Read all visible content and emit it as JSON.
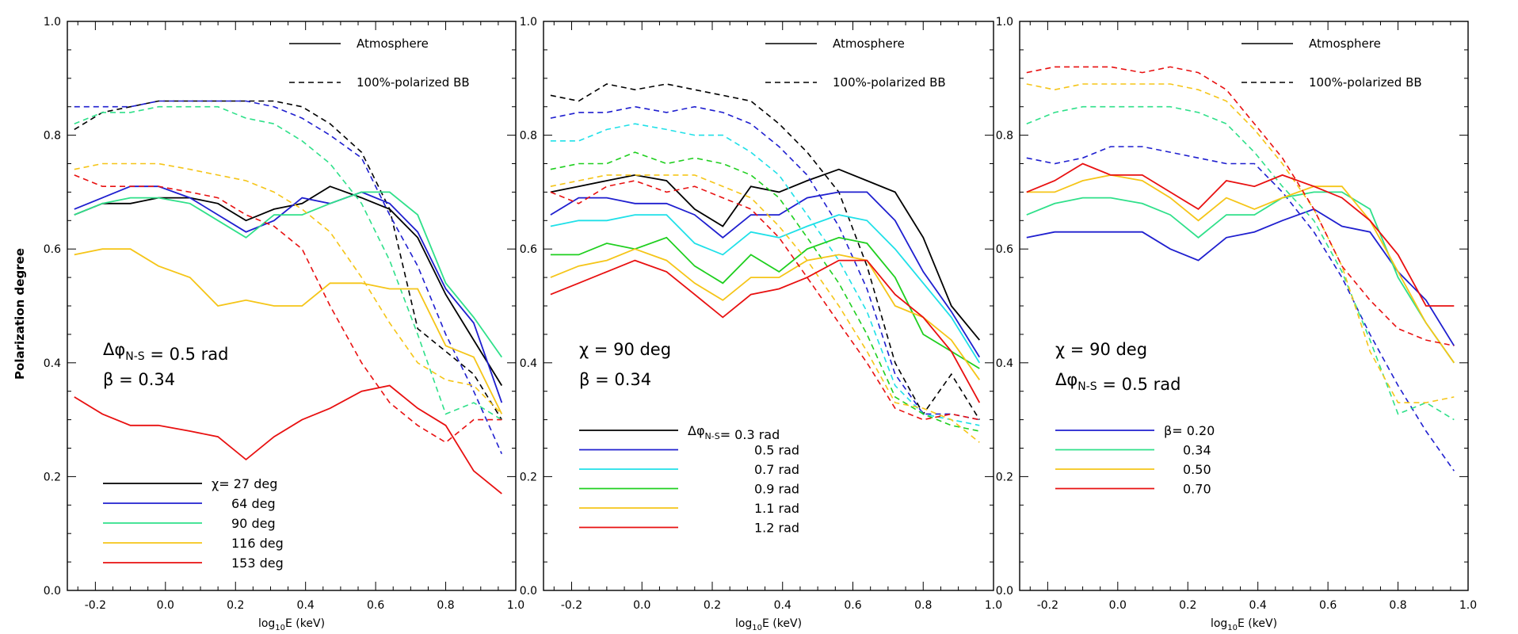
{
  "figure": {
    "ylabel": "Polarization degree",
    "yticks": [
      "0.0",
      "0.2",
      "0.4",
      "0.6",
      "0.8",
      "1.0"
    ],
    "xticks": [
      "-0.2",
      "0.0",
      "0.2",
      "0.4",
      "0.6",
      "0.8",
      "1.0"
    ]
  },
  "colors": {
    "black": "#000000",
    "blue": "#1f1fcf",
    "cyan": "#1fe0e8",
    "green": "#1fcf1f",
    "spring": "#2fe08a",
    "yellow": "#f5c518",
    "red": "#e81010"
  },
  "chart_data": [
    {
      "type": "line",
      "panel": "left",
      "xlabel": "log₁₀E (keV)",
      "ylabel": "Polarization degree",
      "xlim": [
        -0.28,
        1.0
      ],
      "ylim": [
        0.0,
        1.0
      ],
      "style_legend": {
        "solid": "Atmosphere",
        "dashed": "100%-polarized BB"
      },
      "annotation_lines": [
        "Δφ_{N-S} =  0.5 rad",
        "β =  0.34"
      ],
      "legend_title": "χ=",
      "x": [
        -0.26,
        -0.18,
        -0.1,
        -0.02,
        0.07,
        0.15,
        0.23,
        0.31,
        0.39,
        0.47,
        0.56,
        0.64,
        0.72,
        0.8,
        0.88,
        0.96
      ],
      "series": [
        {
          "name": "27 deg",
          "color": "black",
          "solid": [
            0.66,
            0.68,
            0.68,
            0.69,
            0.69,
            0.68,
            0.65,
            0.67,
            0.68,
            0.71,
            0.69,
            0.67,
            0.62,
            0.52,
            0.44,
            0.36
          ],
          "dashed": [
            0.81,
            0.84,
            0.85,
            0.86,
            0.86,
            0.86,
            0.86,
            0.86,
            0.85,
            0.82,
            0.77,
            0.67,
            0.46,
            0.42,
            0.38,
            0.3
          ]
        },
        {
          "name": "64 deg",
          "color": "blue",
          "solid": [
            0.67,
            0.69,
            0.71,
            0.71,
            0.69,
            0.66,
            0.63,
            0.65,
            0.69,
            0.68,
            0.7,
            0.68,
            0.63,
            0.53,
            0.47,
            0.33
          ],
          "dashed": [
            0.85,
            0.85,
            0.85,
            0.86,
            0.86,
            0.86,
            0.86,
            0.85,
            0.83,
            0.8,
            0.76,
            0.66,
            0.57,
            0.45,
            0.35,
            0.24
          ]
        },
        {
          "name": "90 deg",
          "color": "spring",
          "solid": [
            0.66,
            0.68,
            0.69,
            0.69,
            0.68,
            0.65,
            0.62,
            0.66,
            0.66,
            0.68,
            0.7,
            0.7,
            0.66,
            0.54,
            0.48,
            0.41
          ],
          "dashed": [
            0.82,
            0.84,
            0.84,
            0.85,
            0.85,
            0.85,
            0.83,
            0.82,
            0.79,
            0.75,
            0.68,
            0.58,
            0.45,
            0.31,
            0.33,
            0.3
          ]
        },
        {
          "name": "116 deg",
          "color": "yellow",
          "solid": [
            0.59,
            0.6,
            0.6,
            0.57,
            0.55,
            0.5,
            0.51,
            0.5,
            0.5,
            0.54,
            0.54,
            0.53,
            0.53,
            0.43,
            0.41,
            0.31
          ],
          "dashed": [
            0.74,
            0.75,
            0.75,
            0.75,
            0.74,
            0.73,
            0.72,
            0.7,
            0.67,
            0.63,
            0.55,
            0.47,
            0.4,
            0.37,
            0.36,
            0.31
          ]
        },
        {
          "name": "153 deg",
          "color": "red",
          "solid": [
            0.34,
            0.31,
            0.29,
            0.29,
            0.28,
            0.27,
            0.23,
            0.27,
            0.3,
            0.32,
            0.35,
            0.36,
            0.32,
            0.29,
            0.21,
            0.17
          ],
          "dashed": [
            0.73,
            0.71,
            0.71,
            0.71,
            0.7,
            0.69,
            0.66,
            0.64,
            0.6,
            0.5,
            0.4,
            0.33,
            0.29,
            0.26,
            0.3,
            0.3
          ]
        }
      ]
    },
    {
      "type": "line",
      "panel": "middle",
      "xlabel": "log₁₀E (keV)",
      "xlim": [
        -0.28,
        1.0
      ],
      "ylim": [
        0.0,
        1.0
      ],
      "style_legend": {
        "solid": "Atmosphere",
        "dashed": "100%-polarized BB"
      },
      "annotation_lines": [
        "χ =    90 deg",
        "β =  0.34"
      ],
      "legend_title": "Δφ_{N-S}=",
      "x": [
        -0.26,
        -0.18,
        -0.1,
        -0.02,
        0.07,
        0.15,
        0.23,
        0.31,
        0.39,
        0.47,
        0.56,
        0.64,
        0.72,
        0.8,
        0.88,
        0.96
      ],
      "series": [
        {
          "name": "0.3 rad",
          "color": "black",
          "solid": [
            0.7,
            0.71,
            0.72,
            0.73,
            0.72,
            0.67,
            0.64,
            0.71,
            0.7,
            0.72,
            0.74,
            0.72,
            0.7,
            0.62,
            0.5,
            0.44
          ],
          "dashed": [
            0.87,
            0.86,
            0.89,
            0.88,
            0.89,
            0.88,
            0.87,
            0.86,
            0.82,
            0.77,
            0.7,
            0.57,
            0.4,
            0.31,
            0.38,
            0.3
          ]
        },
        {
          "name": "0.5 rad",
          "color": "blue",
          "solid": [
            0.66,
            0.69,
            0.69,
            0.68,
            0.68,
            0.66,
            0.62,
            0.66,
            0.66,
            0.69,
            0.7,
            0.7,
            0.65,
            0.56,
            0.49,
            0.41
          ],
          "dashed": [
            0.83,
            0.84,
            0.84,
            0.85,
            0.84,
            0.85,
            0.84,
            0.82,
            0.78,
            0.73,
            0.64,
            0.53,
            0.38,
            0.31,
            0.31,
            0.3
          ]
        },
        {
          "name": "0.7 rad",
          "color": "cyan",
          "solid": [
            0.64,
            0.65,
            0.65,
            0.66,
            0.66,
            0.61,
            0.59,
            0.63,
            0.62,
            0.64,
            0.66,
            0.65,
            0.6,
            0.54,
            0.48,
            0.4
          ],
          "dashed": [
            0.79,
            0.79,
            0.81,
            0.82,
            0.81,
            0.8,
            0.8,
            0.77,
            0.73,
            0.66,
            0.58,
            0.49,
            0.36,
            0.31,
            0.3,
            0.29
          ]
        },
        {
          "name": "0.9 rad",
          "color": "green",
          "solid": [
            0.59,
            0.59,
            0.61,
            0.6,
            0.62,
            0.57,
            0.54,
            0.59,
            0.56,
            0.6,
            0.62,
            0.61,
            0.55,
            0.45,
            0.42,
            0.39
          ],
          "dashed": [
            0.74,
            0.75,
            0.75,
            0.77,
            0.75,
            0.76,
            0.75,
            0.73,
            0.69,
            0.62,
            0.54,
            0.45,
            0.34,
            0.31,
            0.29,
            0.28
          ]
        },
        {
          "name": "1.1 rad",
          "color": "yellow",
          "solid": [
            0.55,
            0.57,
            0.58,
            0.6,
            0.58,
            0.54,
            0.51,
            0.55,
            0.55,
            0.58,
            0.59,
            0.58,
            0.5,
            0.48,
            0.44,
            0.37
          ],
          "dashed": [
            0.71,
            0.72,
            0.73,
            0.73,
            0.73,
            0.73,
            0.71,
            0.69,
            0.64,
            0.58,
            0.5,
            0.42,
            0.33,
            0.32,
            0.3,
            0.26
          ]
        },
        {
          "name": "1.2 rad",
          "color": "red",
          "solid": [
            0.52,
            0.54,
            0.56,
            0.58,
            0.56,
            0.52,
            0.48,
            0.52,
            0.53,
            0.55,
            0.58,
            0.58,
            0.52,
            0.48,
            0.42,
            0.33
          ],
          "dashed": [
            0.7,
            0.68,
            0.71,
            0.72,
            0.7,
            0.71,
            0.69,
            0.67,
            0.62,
            0.55,
            0.47,
            0.4,
            0.32,
            0.3,
            0.31,
            0.3
          ]
        }
      ]
    },
    {
      "type": "line",
      "panel": "right",
      "xlabel": "log₁₀E (keV)",
      "xlim": [
        -0.28,
        1.0
      ],
      "ylim": [
        0.0,
        1.0
      ],
      "style_legend": {
        "solid": "Atmosphere",
        "dashed": "100%-polarized BB"
      },
      "annotation_lines": [
        "χ =    90 deg",
        "Δφ_{N-S} =  0.5 rad"
      ],
      "legend_title": "β=",
      "x": [
        -0.26,
        -0.18,
        -0.1,
        -0.02,
        0.07,
        0.15,
        0.23,
        0.31,
        0.39,
        0.47,
        0.56,
        0.64,
        0.72,
        0.8,
        0.88,
        0.96
      ],
      "series": [
        {
          "name": "0.20",
          "color": "blue",
          "solid": [
            0.62,
            0.63,
            0.63,
            0.63,
            0.63,
            0.6,
            0.58,
            0.62,
            0.63,
            0.65,
            0.67,
            0.64,
            0.63,
            0.56,
            0.51,
            0.43
          ],
          "dashed": [
            0.76,
            0.75,
            0.76,
            0.78,
            0.78,
            0.77,
            0.76,
            0.75,
            0.75,
            0.7,
            0.63,
            0.55,
            0.45,
            0.36,
            0.28,
            0.21
          ]
        },
        {
          "name": "0.34",
          "color": "spring",
          "solid": [
            0.66,
            0.68,
            0.69,
            0.69,
            0.68,
            0.66,
            0.62,
            0.66,
            0.66,
            0.69,
            0.7,
            0.7,
            0.67,
            0.55,
            0.47,
            0.4
          ],
          "dashed": [
            0.82,
            0.84,
            0.85,
            0.85,
            0.85,
            0.85,
            0.84,
            0.82,
            0.77,
            0.71,
            0.65,
            0.56,
            0.44,
            0.31,
            0.33,
            0.3
          ]
        },
        {
          "name": "0.50",
          "color": "yellow",
          "solid": [
            0.7,
            0.7,
            0.72,
            0.73,
            0.72,
            0.69,
            0.65,
            0.69,
            0.67,
            0.69,
            0.71,
            0.71,
            0.65,
            0.56,
            0.47,
            0.4
          ],
          "dashed": [
            0.89,
            0.88,
            0.89,
            0.89,
            0.89,
            0.89,
            0.88,
            0.86,
            0.81,
            0.75,
            0.67,
            0.57,
            0.42,
            0.33,
            0.33,
            0.34
          ]
        },
        {
          "name": "0.70",
          "color": "red",
          "solid": [
            0.7,
            0.72,
            0.75,
            0.73,
            0.73,
            0.7,
            0.67,
            0.72,
            0.71,
            0.73,
            0.71,
            0.69,
            0.65,
            0.59,
            0.5,
            0.5
          ],
          "dashed": [
            0.91,
            0.92,
            0.92,
            0.92,
            0.91,
            0.92,
            0.91,
            0.88,
            0.82,
            0.76,
            0.67,
            0.57,
            0.51,
            0.46,
            0.44,
            0.43
          ]
        }
      ]
    }
  ]
}
